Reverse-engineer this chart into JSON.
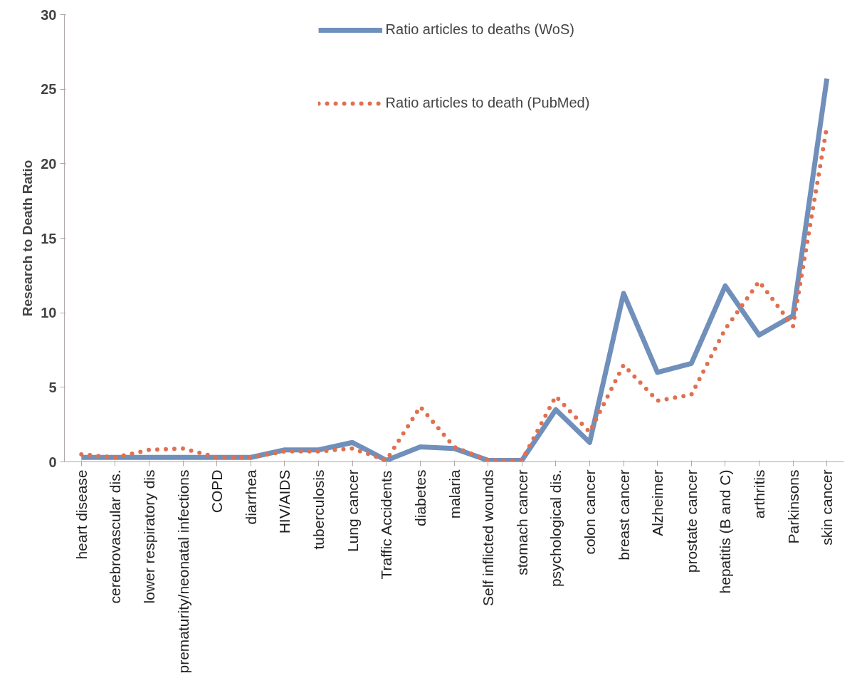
{
  "chart_data": {
    "type": "line",
    "ylabel": "Research to Death Ratio",
    "categories": [
      "heart disease",
      "cerebrovascular dis.",
      "lower respiratory dis",
      "prematurity/neonatal infections",
      "COPD",
      "diarrhea",
      "HIV/AIDS",
      "tuberculosis",
      "Lung cancer",
      "Traffic Accidents",
      "diabetes",
      "malaria",
      "Self inflicted wounds",
      "stomach cancer",
      "psychological dis.",
      "colon cancer",
      "breast cancer",
      "Alzheimer",
      "prostate cancer",
      "hepatitis (B and C)",
      "arthritis",
      "Parkinsons",
      "skin cancer"
    ],
    "series": [
      {
        "name": "Ratio articles to deaths (WoS)",
        "color": "#7090bb",
        "line_style": "solid",
        "values": [
          0.3,
          0.3,
          0.3,
          0.3,
          0.3,
          0.3,
          0.8,
          0.8,
          1.3,
          0.1,
          1.0,
          0.9,
          0.1,
          0.1,
          3.5,
          1.3,
          11.3,
          6.0,
          6.6,
          11.8,
          8.5,
          9.8,
          25.7
        ]
      },
      {
        "name": "Ratio articles to death (PubMed)",
        "color": "#e07050",
        "line_style": "dotted",
        "values": [
          0.5,
          0.3,
          0.8,
          0.9,
          0.3,
          0.3,
          0.7,
          0.7,
          0.9,
          0.1,
          3.7,
          1.0,
          0.1,
          0.1,
          4.4,
          2.0,
          6.5,
          4.1,
          4.5,
          8.9,
          12.1,
          9.1,
          22.5
        ]
      }
    ],
    "ylim": [
      0,
      30
    ],
    "yticks": [
      0,
      5,
      10,
      15,
      20,
      25,
      30
    ],
    "grid": false,
    "legend": "top",
    "marker": "none"
  }
}
